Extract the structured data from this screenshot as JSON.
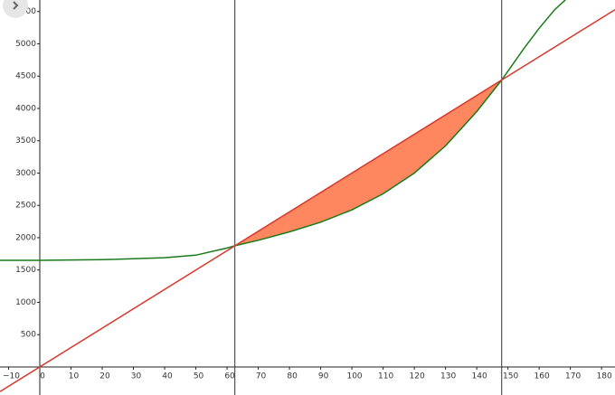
{
  "chart_data": {
    "type": "line",
    "xlim": [
      -12.75,
      184.3
    ],
    "ylim": [
      -434,
      5678
    ],
    "xticks": [
      {
        "value": -10,
        "label": "−10"
      },
      0,
      10,
      20,
      30,
      40,
      50,
      60,
      70,
      80,
      90,
      100,
      110,
      120,
      130,
      140,
      150,
      160,
      170,
      180
    ],
    "yticks": [
      500,
      1000,
      1500,
      2000,
      2500,
      3000,
      3500,
      4000,
      4500,
      5000,
      5500
    ],
    "grid": false,
    "series": [
      {
        "color": "#1a7a1a",
        "x": [
          -12.75,
          0,
          20,
          40,
          50,
          60,
          62.5,
          70,
          80,
          90,
          100,
          110,
          120,
          130,
          140,
          148,
          155,
          160,
          165,
          168.4
        ],
        "values": [
          1650,
          1650,
          1660,
          1690,
          1730,
          1840,
          1875,
          1960,
          2090,
          2240,
          2430,
          2680,
          3000,
          3420,
          3950,
          4440,
          4920,
          5240,
          5530,
          5680
        ]
      },
      {
        "color": "#d9362b",
        "x": [
          -12.75,
          62.5,
          148,
          184.3
        ],
        "values": [
          -382.5,
          1875,
          4440,
          5529
        ]
      }
    ],
    "vlines": [
      62.5,
      148
    ],
    "shade": {
      "from": 62.5,
      "to": 148,
      "color": "#ff7a4f"
    }
  }
}
